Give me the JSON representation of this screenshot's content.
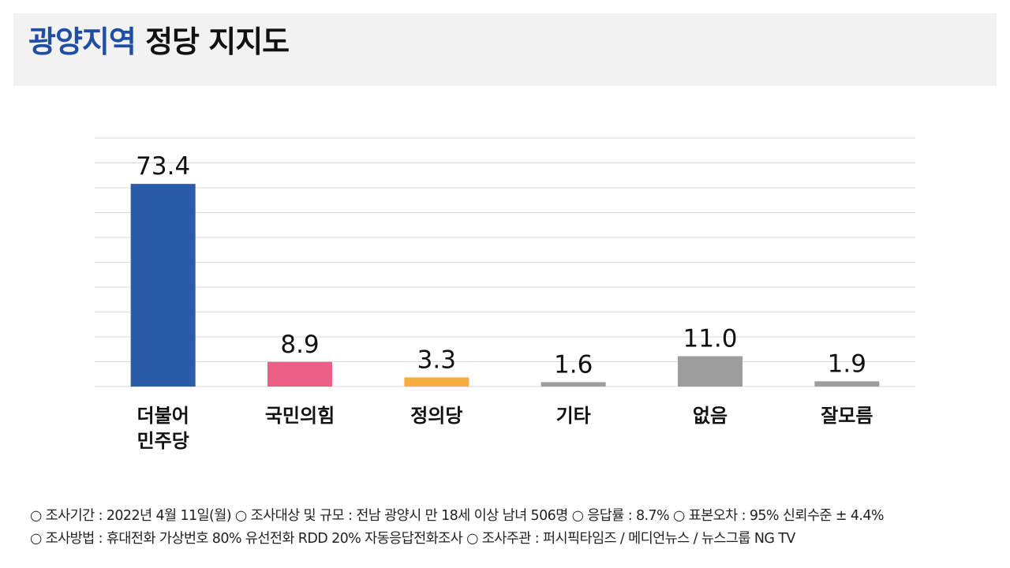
{
  "title": {
    "highlight": "광양지역",
    "rest": "정당 지지도"
  },
  "colors": {
    "title_highlight": "#1f4ea3",
    "gridline": "#d9d9d9"
  },
  "chart_data": {
    "type": "bar",
    "categories": [
      [
        "더불어",
        "민주당"
      ],
      [
        "국민의힘"
      ],
      [
        "정의당"
      ],
      [
        "기타"
      ],
      [
        "없음"
      ],
      [
        "잘모름"
      ]
    ],
    "values": [
      73.4,
      8.9,
      3.3,
      1.6,
      11.0,
      1.9
    ],
    "value_labels": [
      "73.4",
      "8.9",
      "3.3",
      "1.6",
      "11.0",
      "1.9"
    ],
    "bar_colors": [
      "#2b5caa",
      "#ee5f86",
      "#f5ae3e",
      "#9d9d9d",
      "#9d9d9d",
      "#9d9d9d"
    ],
    "ylim": [
      0,
      90
    ],
    "grid": true,
    "xlabel": "",
    "ylabel": ""
  },
  "footer": {
    "line1": "○ 조사기간 : 2022년 4월 11일(월)  ○ 조사대상 및 규모 : 전남 광양시 만 18세 이상 남녀 506명  ○ 응답률 : 8.7%   ○ 표본오차 : 95% 신뢰수준 ± 4.4%",
    "line2": "○ 조사방법 : 휴대전화 가상번호 80%  유선전화 RDD 20%  자동응답전화조사   ○  조사주관 : 퍼시픽타임즈 / 메디언뉴스 / 뉴스그룹 NG TV"
  }
}
